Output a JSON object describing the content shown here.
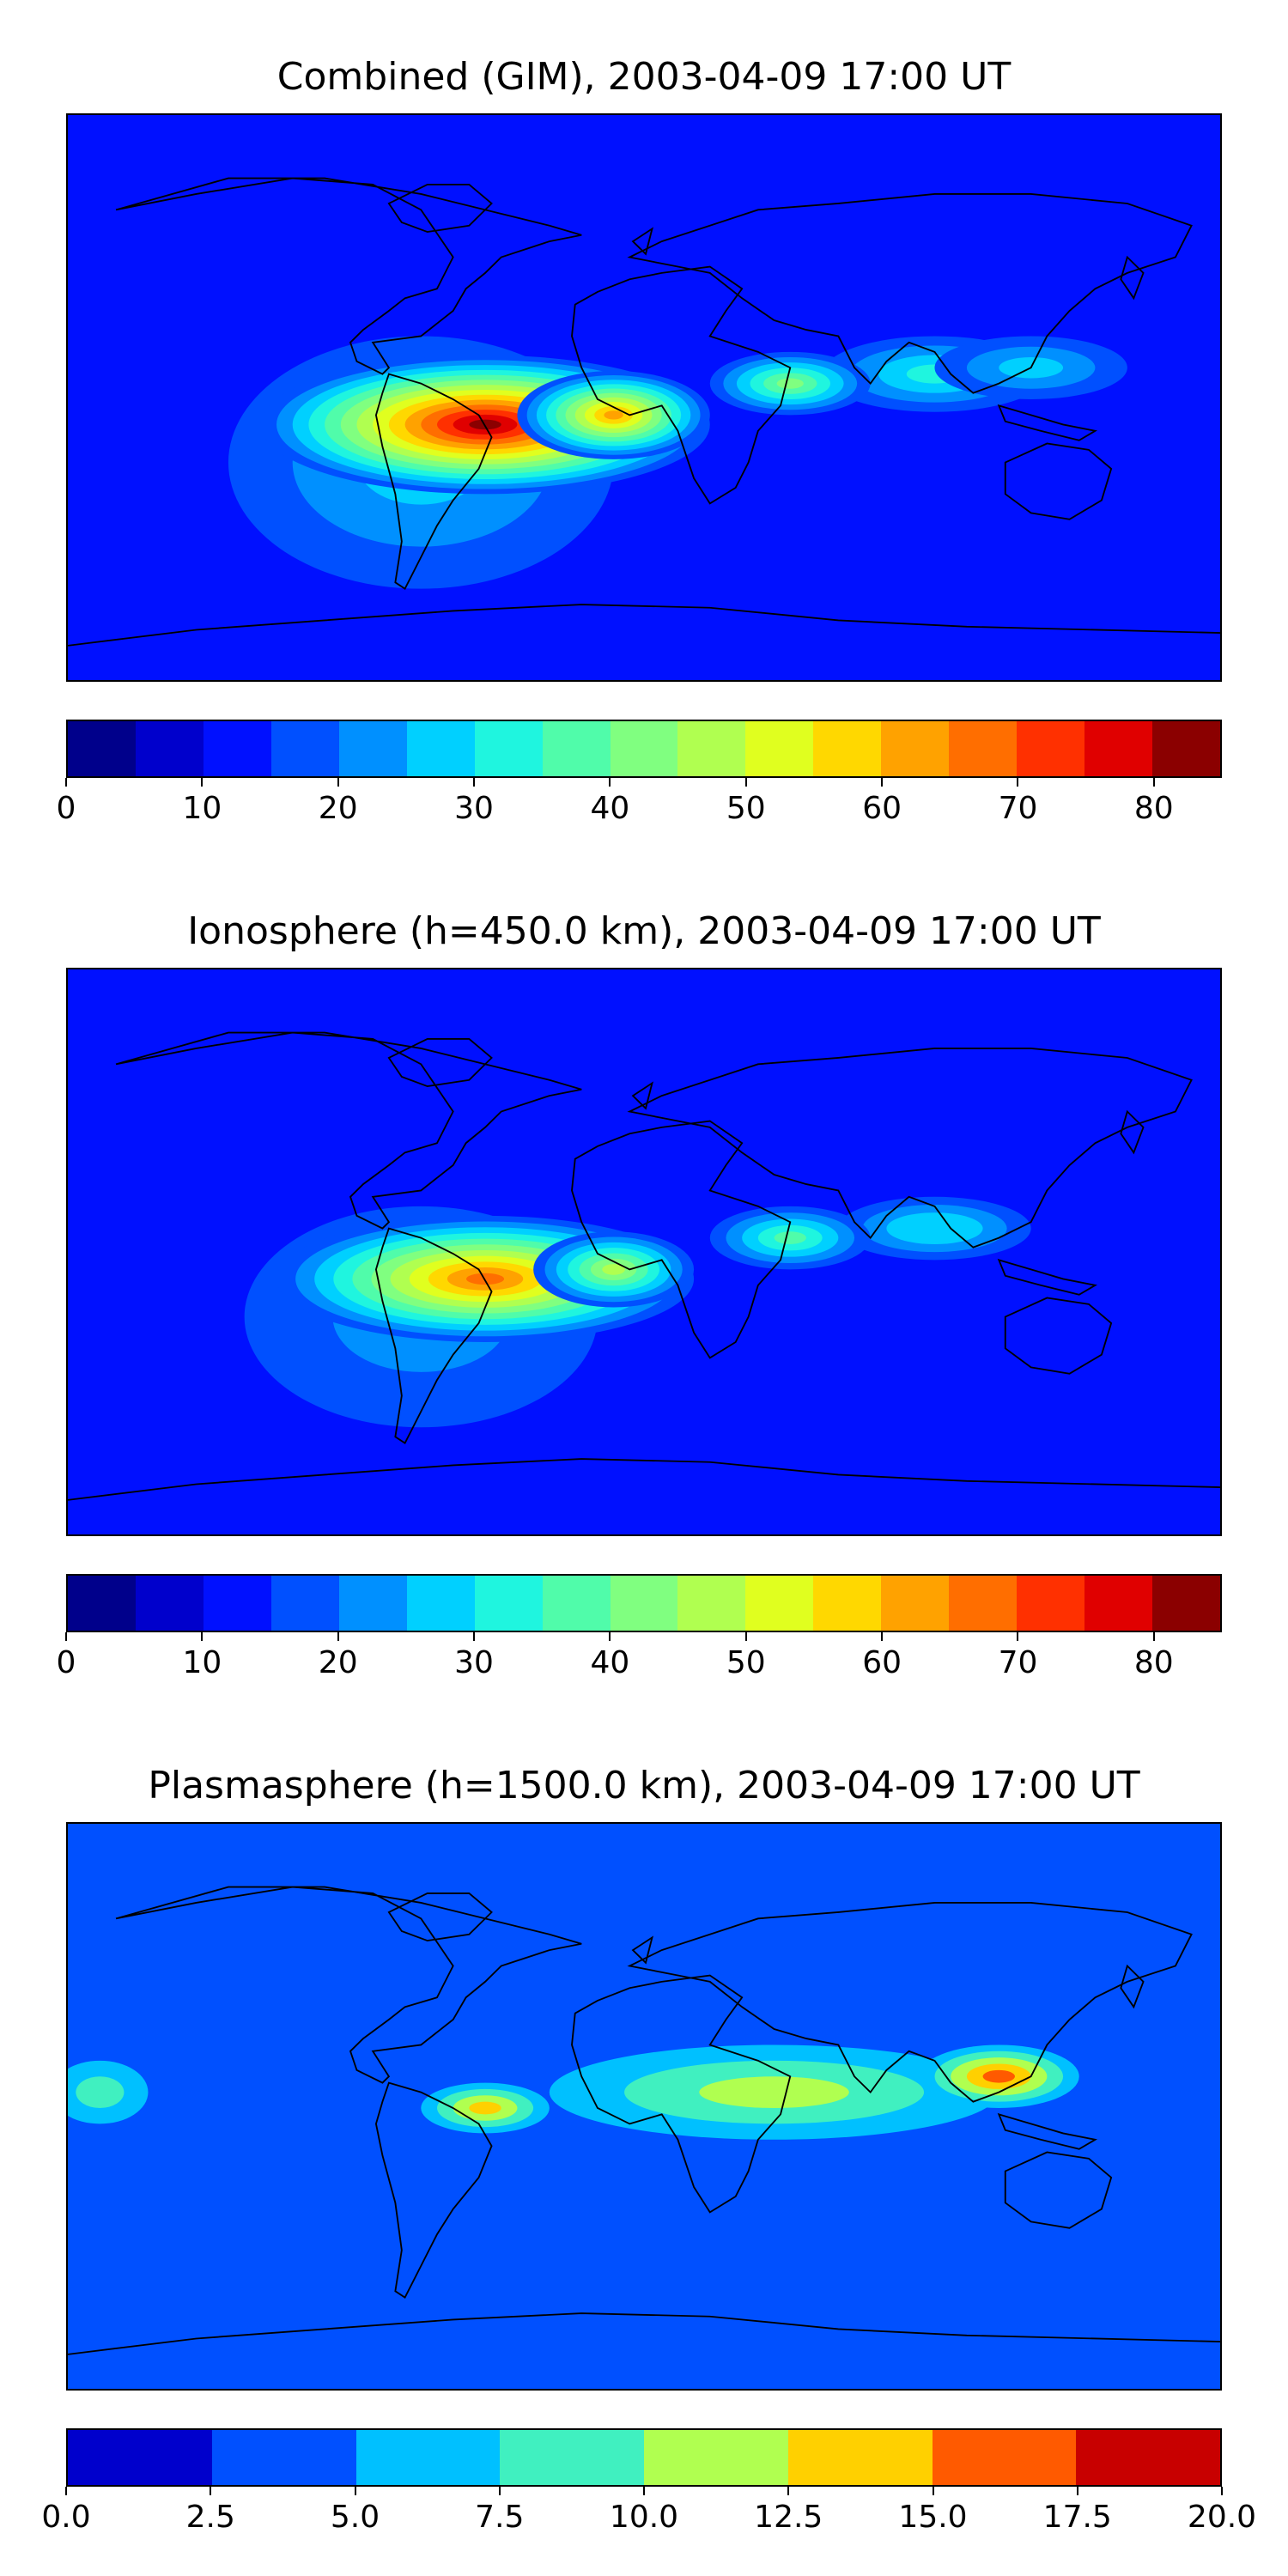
{
  "chart_data": [
    {
      "type": "heatmap",
      "title": "Combined (GIM), 2003-04-09 17:00 UT",
      "xlabel": "",
      "ylabel": "",
      "projection": "global equirectangular map with coastlines",
      "colorbar": {
        "min": 0,
        "max": 85,
        "step": 5,
        "ticks": [
          "0",
          "10",
          "20",
          "30",
          "40",
          "50",
          "60",
          "70",
          "80"
        ],
        "colors": [
          "#00008b",
          "#0000cc",
          "#0010ff",
          "#0050ff",
          "#0090ff",
          "#00d0ff",
          "#1ff5df",
          "#50fcaa",
          "#80ff80",
          "#b0ff50",
          "#e0ff1f",
          "#ffd800",
          "#ffa200",
          "#ff6e00",
          "#ff3000",
          "#e00000",
          "#8b0000"
        ]
      },
      "features": [
        {
          "lon": -50,
          "lat": -8,
          "sx": 70,
          "sy": 22,
          "value": 80
        },
        {
          "lon": -10,
          "lat": -5,
          "sx": 30,
          "sy": 14,
          "value": 60
        },
        {
          "lon": 45,
          "lat": 5,
          "sx": 25,
          "sy": 10,
          "value": 40
        },
        {
          "lon": 90,
          "lat": 8,
          "sx": 35,
          "sy": 12,
          "value": 32
        },
        {
          "lon": -70,
          "lat": -20,
          "sx": 60,
          "sy": 40,
          "value": 25
        },
        {
          "lon": 120,
          "lat": 10,
          "sx": 30,
          "sy": 10,
          "value": 25
        }
      ],
      "background_value": 10
    },
    {
      "type": "heatmap",
      "title": "Ionosphere  (h=450.0 km), 2003-04-09 17:00 UT",
      "xlabel": "",
      "ylabel": "",
      "projection": "global equirectangular map with coastlines",
      "colorbar": {
        "min": 0,
        "max": 85,
        "step": 5,
        "ticks": [
          "0",
          "10",
          "20",
          "30",
          "40",
          "50",
          "60",
          "70",
          "80"
        ],
        "colors": [
          "#00008b",
          "#0000cc",
          "#0010ff",
          "#0050ff",
          "#0090ff",
          "#00d0ff",
          "#1ff5df",
          "#50fcaa",
          "#80ff80",
          "#b0ff50",
          "#e0ff1f",
          "#ffd800",
          "#ffa200",
          "#ff6e00",
          "#ff3000",
          "#e00000",
          "#8b0000"
        ]
      },
      "features": [
        {
          "lon": -50,
          "lat": -8,
          "sx": 65,
          "sy": 20,
          "value": 67
        },
        {
          "lon": -10,
          "lat": -5,
          "sx": 25,
          "sy": 12,
          "value": 45
        },
        {
          "lon": 45,
          "lat": 5,
          "sx": 25,
          "sy": 10,
          "value": 35
        },
        {
          "lon": 90,
          "lat": 8,
          "sx": 30,
          "sy": 10,
          "value": 28
        },
        {
          "lon": -70,
          "lat": -20,
          "sx": 55,
          "sy": 35,
          "value": 22
        }
      ],
      "background_value": 10
    },
    {
      "type": "heatmap",
      "title": "Plasmasphere (h=1500.0 km), 2003-04-09 17:00 UT",
      "xlabel": "",
      "ylabel": "",
      "projection": "global equirectangular map with coastlines",
      "colorbar": {
        "min": 0,
        "max": 20,
        "step": 2.5,
        "ticks": [
          "0.0",
          "2.5",
          "5.0",
          "7.5",
          "10.0",
          "12.5",
          "15.0",
          "17.5",
          "20.0"
        ],
        "colors": [
          "#0000cc",
          "#0050ff",
          "#00c0ff",
          "#40f0c0",
          "#b0ff50",
          "#ffd000",
          "#ff5a00",
          "#c80000"
        ]
      },
      "features": [
        {
          "lon": 110,
          "lat": 10,
          "sx": 25,
          "sy": 10,
          "value": 15.5
        },
        {
          "lon": -50,
          "lat": 0,
          "sx": 20,
          "sy": 8,
          "value": 13
        },
        {
          "lon": 40,
          "lat": 5,
          "sx": 70,
          "sy": 15,
          "value": 11
        },
        {
          "lon": -170,
          "lat": 5,
          "sx": 15,
          "sy": 10,
          "value": 9
        }
      ],
      "background_value": 4
    }
  ]
}
